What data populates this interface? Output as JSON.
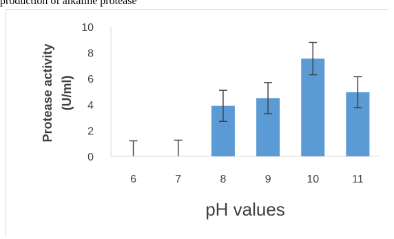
{
  "caption": "production of alkaline protease",
  "chart_data": {
    "type": "bar",
    "categories": [
      "6",
      "7",
      "8",
      "9",
      "10",
      "11"
    ],
    "values": [
      0,
      0,
      3.9,
      4.5,
      7.55,
      4.95
    ],
    "errors": [
      1.2,
      1.25,
      1.2,
      1.2,
      1.25,
      1.2
    ],
    "ylabel_lines": [
      "Protease activity",
      "(U/ml)"
    ],
    "xlabel": "pH values",
    "ylim": [
      0,
      10
    ],
    "yticks": [
      0,
      2,
      4,
      6,
      8,
      10
    ],
    "grid": false,
    "legend": "none",
    "bar_color": "#5b9bd5",
    "error_color": "#404040",
    "axis_color": "#d9d9d9"
  }
}
